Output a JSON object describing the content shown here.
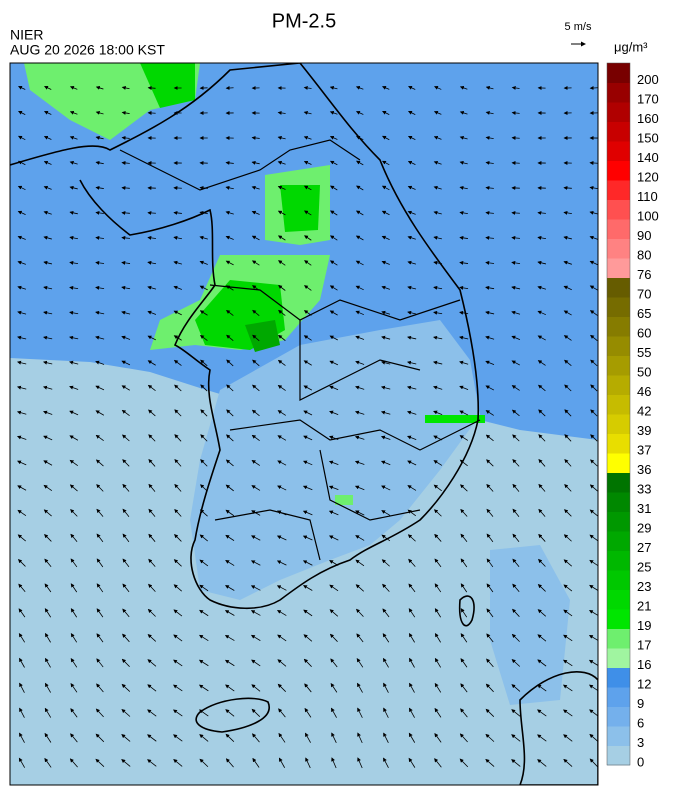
{
  "header": {
    "title": "PM-2.5",
    "agency": "NIER",
    "datetime": "AUG 20 2026 18:00 KST",
    "wind_scale": "5 m/s",
    "unit": "μg/m³"
  },
  "colorbar": {
    "levels": [
      0,
      3,
      6,
      9,
      12,
      16,
      17,
      19,
      21,
      23,
      25,
      27,
      29,
      31,
      33,
      36,
      37,
      39,
      42,
      46,
      50,
      55,
      60,
      65,
      70,
      76,
      80,
      90,
      100,
      110,
      120,
      140,
      150,
      160,
      170,
      200
    ],
    "colors": [
      "#a6cfe4",
      "#8cc0ea",
      "#74b0ec",
      "#5ea2ec",
      "#3f8fe8",
      "#a0f5a0",
      "#6eef6e",
      "#00e600",
      "#00d800",
      "#00c800",
      "#00b800",
      "#00a800",
      "#009800",
      "#008800",
      "#007400",
      "#ffff00",
      "#e8de00",
      "#d6cc00",
      "#c6bc00",
      "#b6ac00",
      "#a69c00",
      "#968c00",
      "#867c00",
      "#766c00",
      "#665c00",
      "#ff9a9a",
      "#ff8282",
      "#ff6a6a",
      "#ff5050",
      "#ff2828",
      "#ff0000",
      "#e00000",
      "#c80000",
      "#b00000",
      "#980000",
      "#780000"
    ]
  }
}
